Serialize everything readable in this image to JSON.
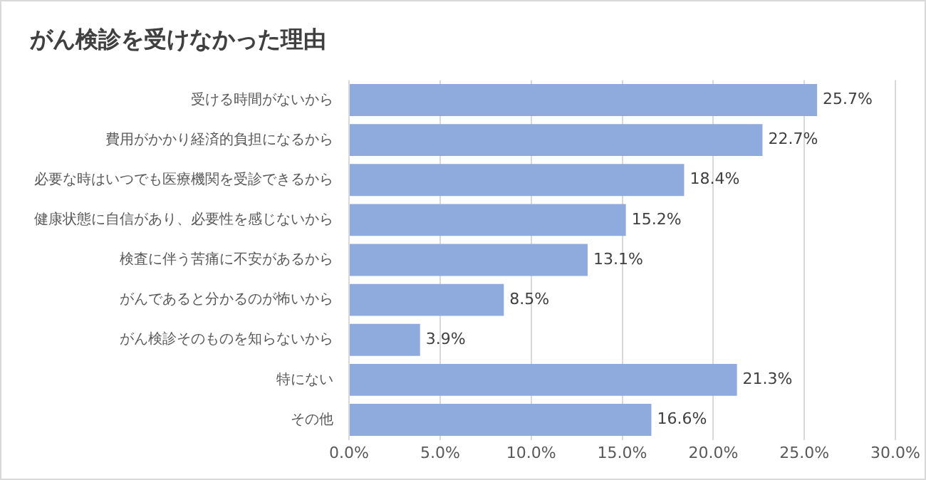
{
  "chart_data": {
    "type": "bar",
    "orientation": "horizontal",
    "title": "がん検診を受けなかった理由",
    "categories": [
      "受ける時間がないから",
      "費用がかかり経済的負担になるから",
      "必要な時はいつでも医療機関を受診できるから",
      "健康状態に自信があり、必要性を感じないから",
      "検査に伴う苦痛に不安があるから",
      "がんであると分かるのが怖いから",
      "がん検診そのものを知らないから",
      "特にない",
      "その他"
    ],
    "values": [
      25.7,
      22.7,
      18.4,
      15.2,
      13.1,
      8.5,
      3.9,
      21.3,
      16.6
    ],
    "value_labels": [
      "25.7%",
      "22.7%",
      "18.4%",
      "15.2%",
      "13.1%",
      "8.5%",
      "3.9%",
      "21.3%",
      "16.6%"
    ],
    "color": "#8faadc",
    "xlim": [
      0,
      30
    ],
    "xticks": [
      {
        "value": 0,
        "label": "0.0%"
      },
      {
        "value": 5,
        "label": "5.0%"
      },
      {
        "value": 10,
        "label": "10.0%"
      },
      {
        "value": 15,
        "label": "15.0%"
      },
      {
        "value": 20,
        "label": "20.0%"
      },
      {
        "value": 25,
        "label": "25.0%"
      },
      {
        "value": 30,
        "label": "30.0%"
      }
    ],
    "grid": "x",
    "legend": false
  }
}
